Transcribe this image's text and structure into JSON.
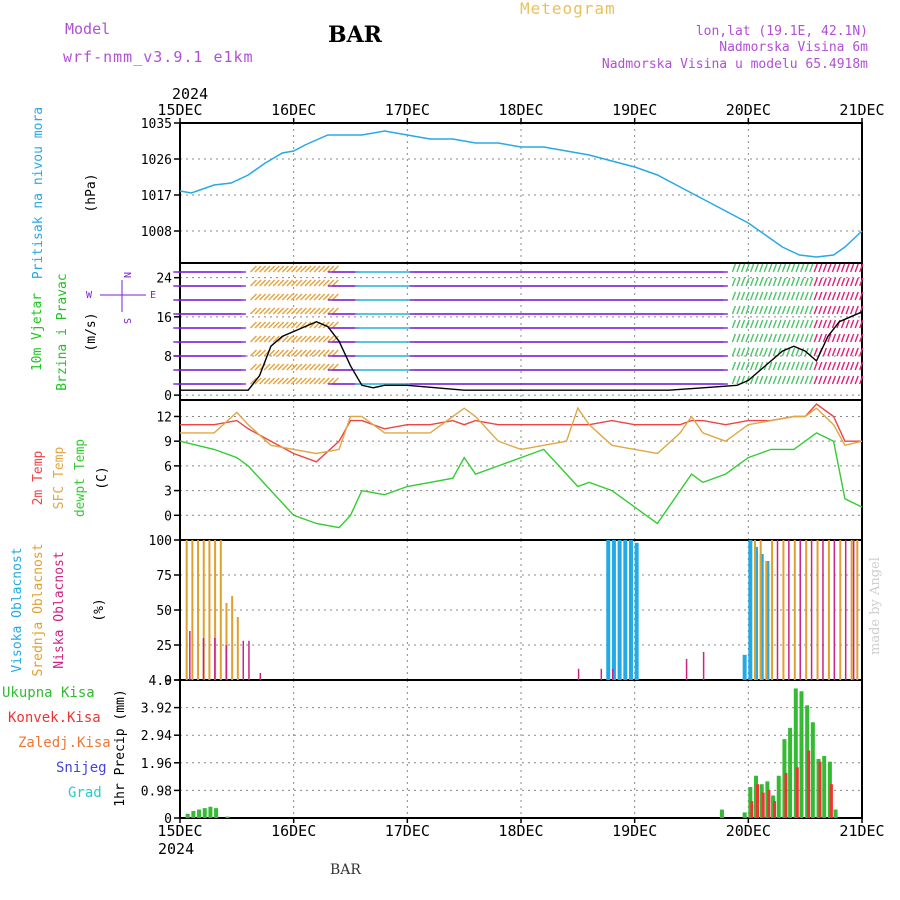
{
  "header": {
    "model_label": "Model",
    "model_name": "wrf-nmm_v3.9.1 e1km",
    "station": "BAR",
    "title": "Meteogram",
    "location": "lon,lat (19.1E, 42.1N)",
    "elevation": "Nadmorska Visina 6m",
    "model_elevation": "Nadmorska Visina u modelu 65.4918m"
  },
  "footer": {
    "station": "BAR",
    "credit": "made by Angel"
  },
  "time_axis": {
    "year": "2024",
    "ticks": [
      "15DEC",
      "16DEC",
      "17DEC",
      "18DEC",
      "19DEC",
      "20DEC",
      "21DEC"
    ]
  },
  "colors": {
    "pressure": "#29a8e6",
    "wind_label": "#22c422",
    "wind_arrows": "#7a22d6",
    "temp2m": "#ee4444",
    "sfc_temp": "#e0a845",
    "dewpoint": "#33cc33",
    "high_cloud": "#22aae8",
    "mid_cloud": "#e0a030",
    "low_cloud": "#cc2288",
    "total_precip": "#33bb33",
    "conv_precip": "#ee3333",
    "frozen_precip": "#ee7733",
    "snow": "#4444dd",
    "graupel": "#22cccc"
  },
  "panel_labels": {
    "pressure": [
      "Pritisak na nivou mora",
      "(hPa)"
    ],
    "wind": [
      "10m Vjetar",
      "Brzina i Pravac",
      "(m/s)"
    ],
    "wind_compass": [
      "N",
      "E",
      "S",
      "W"
    ],
    "temp": [
      "2m Temp",
      "SFC Temp",
      "dewpt Temp",
      "(C)"
    ],
    "cloud": [
      "Visoka Oblacnost",
      "Srednja Oblacnost",
      "Niska Oblacnost",
      "(%)"
    ],
    "precip": [
      "Ukupna Kisa",
      "Konvek.Kisa",
      "Zaledj.Kisa",
      "Snijeg",
      "Grad",
      "1hr Precip",
      "(mm)"
    ]
  },
  "chart_data": [
    {
      "type": "line",
      "name": "pressure",
      "x_unit": "days since 15DEC 00Z",
      "ylim": [
        1000,
        1035
      ],
      "yticks": [
        "1035",
        "1026",
        "1017",
        "1008"
      ],
      "x": [
        0,
        0.1,
        0.2,
        0.3,
        0.45,
        0.6,
        0.75,
        0.9,
        1.0,
        1.1,
        1.3,
        1.4,
        1.6,
        1.8,
        2.0,
        2.2,
        2.4,
        2.6,
        2.8,
        3.0,
        3.2,
        3.4,
        3.6,
        3.8,
        4.0,
        4.2,
        4.4,
        4.6,
        4.8,
        5.0,
        5.15,
        5.3,
        5.45,
        5.6,
        5.75,
        5.85,
        6.0
      ],
      "series": [
        {
          "values": [
            1018,
            1017.5,
            1018.5,
            1019.5,
            1020,
            1022,
            1025,
            1027.5,
            1028,
            1029.5,
            1032,
            1032,
            1032,
            1033,
            1032,
            1031,
            1031,
            1030,
            1030,
            1029,
            1029,
            1028,
            1027,
            1025.5,
            1024,
            1022,
            1019,
            1016,
            1013,
            1010,
            1007,
            1004,
            1002,
            1001.5,
            1002,
            1004,
            1008
          ]
        }
      ]
    },
    {
      "type": "line",
      "name": "wind",
      "x_unit": "days since 15DEC 00Z",
      "ylim": [
        -1,
        27
      ],
      "yticks": [
        "24",
        "16",
        "8",
        "0"
      ],
      "x": [
        0,
        0.3,
        0.6,
        0.7,
        0.8,
        0.9,
        1.0,
        1.1,
        1.2,
        1.3,
        1.4,
        1.5,
        1.6,
        1.7,
        1.8,
        2.0,
        2.5,
        3.0,
        3.5,
        4.0,
        4.3,
        4.6,
        4.9,
        5.0,
        5.1,
        5.2,
        5.3,
        5.4,
        5.5,
        5.6,
        5.7,
        5.8,
        5.9,
        6.0
      ],
      "series": [
        {
          "values": [
            1,
            1,
            1,
            4,
            10,
            12,
            13,
            14,
            15,
            14,
            11,
            6,
            2,
            1.5,
            2,
            2,
            1,
            1,
            1,
            1,
            1,
            1.5,
            2,
            3,
            5,
            7,
            9,
            10,
            9,
            7,
            12,
            15,
            16,
            17
          ]
        }
      ]
    },
    {
      "type": "line",
      "name": "temperature",
      "x_unit": "days since 15DEC 00Z",
      "ylim": [
        -3,
        14
      ],
      "yticks": [
        "12",
        "9",
        "6",
        "3",
        "0"
      ],
      "x": [
        0,
        0.3,
        0.5,
        0.6,
        0.8,
        1.0,
        1.2,
        1.4,
        1.5,
        1.6,
        1.8,
        2.0,
        2.2,
        2.4,
        2.5,
        2.6,
        2.8,
        3.0,
        3.2,
        3.4,
        3.5,
        3.6,
        3.8,
        4.0,
        4.2,
        4.4,
        4.5,
        4.6,
        4.8,
        5.0,
        5.2,
        5.4,
        5.5,
        5.6,
        5.75,
        5.85,
        6.0
      ],
      "series": [
        {
          "name": "2m Temp",
          "values": [
            11,
            11,
            11.5,
            10.5,
            9,
            7.5,
            6.5,
            9,
            11.5,
            11.5,
            10.5,
            11,
            11,
            11.5,
            11,
            11.5,
            11,
            11,
            11,
            11,
            11,
            11,
            11.5,
            11,
            11,
            11,
            11.5,
            11.5,
            11,
            11.5,
            11.5,
            12,
            12,
            13.5,
            12,
            9,
            9
          ]
        },
        {
          "name": "SFC Temp",
          "values": [
            10,
            10,
            12.5,
            11,
            8.5,
            8,
            7.5,
            8,
            12,
            12,
            10,
            10,
            10,
            12,
            13,
            12,
            9,
            8,
            8.5,
            9,
            13,
            11,
            8.5,
            8,
            7.5,
            10,
            12,
            10,
            9,
            11,
            11.5,
            12,
            12,
            13,
            11,
            8.5,
            9
          ]
        },
        {
          "name": "dewpt Temp",
          "values": [
            9,
            8,
            7,
            6,
            3,
            0,
            -1,
            -1.5,
            0,
            3,
            2.5,
            3.5,
            4,
            4.5,
            7,
            5,
            6,
            7,
            8,
            5,
            3.5,
            4,
            3,
            1,
            -1,
            3,
            5,
            4,
            5,
            7,
            8,
            8,
            9,
            10,
            9,
            2,
            1
          ]
        }
      ]
    },
    {
      "type": "bar",
      "name": "cloud cover",
      "x_unit": "days since 15DEC 00Z",
      "ylim": [
        0,
        100
      ],
      "yticks": [
        "100",
        "75",
        "50",
        "25",
        "0"
      ],
      "series": [
        {
          "name": "Visoka Oblacnost",
          "x": [
            3.75,
            3.8,
            3.85,
            3.9,
            3.95,
            4.0,
            4.95,
            5.0,
            5.05,
            5.1,
            5.15
          ],
          "values": [
            100,
            100,
            100,
            100,
            100,
            98,
            18,
            100,
            95,
            90,
            85
          ]
        },
        {
          "name": "Srednja Oblacnost",
          "x": [
            0.05,
            0.1,
            0.15,
            0.2,
            0.25,
            0.3,
            0.35,
            0.4,
            0.45,
            0.5,
            5.05,
            5.1,
            5.15,
            5.2,
            5.3,
            5.4,
            5.5,
            5.6,
            5.7,
            5.8,
            5.9,
            5.95
          ],
          "values": [
            100,
            100,
            100,
            100,
            100,
            100,
            100,
            55,
            60,
            45,
            100,
            100,
            85,
            100,
            100,
            100,
            100,
            100,
            100,
            100,
            100,
            100
          ]
        },
        {
          "name": "Niska Oblacnost",
          "x": [
            0.08,
            0.2,
            0.3,
            0.4,
            0.55,
            0.6,
            0.7,
            3.5,
            3.7,
            3.8,
            4.45,
            4.6,
            5.25,
            5.35,
            5.45,
            5.55,
            5.65,
            5.75,
            5.85,
            5.92
          ],
          "values": [
            35,
            30,
            30,
            25,
            28,
            28,
            5,
            8,
            8,
            8,
            15,
            20,
            100,
            100,
            100,
            100,
            100,
            100,
            100,
            100
          ]
        }
      ]
    },
    {
      "type": "bar",
      "name": "precipitation",
      "x_unit": "days since 15DEC 00Z",
      "ylim": [
        0,
        4.9
      ],
      "yticks": [
        "4.9",
        "3.92",
        "2.94",
        "1.96",
        "0.98",
        "0"
      ],
      "series": [
        {
          "name": "Ukupna Kisa",
          "x": [
            0.05,
            0.1,
            0.15,
            0.2,
            0.25,
            0.3,
            0.4,
            4.75,
            4.95,
            5.0,
            5.05,
            5.1,
            5.15,
            5.2,
            5.25,
            5.3,
            5.35,
            5.4,
            5.45,
            5.5,
            5.55,
            5.6,
            5.65,
            5.7,
            5.75
          ],
          "values": [
            0.15,
            0.25,
            0.3,
            0.35,
            0.4,
            0.35,
            0.05,
            0.3,
            0.2,
            1.1,
            1.5,
            1.2,
            1.3,
            0.8,
            1.5,
            2.8,
            3.2,
            4.6,
            4.5,
            4.0,
            3.4,
            2.1,
            2.2,
            2.0,
            0.3
          ]
        },
        {
          "name": "Konvek.Kisa",
          "x": [
            5.0,
            5.05,
            5.1,
            5.15,
            5.2,
            5.3,
            5.4,
            5.5,
            5.6,
            5.7
          ],
          "values": [
            0.6,
            1.2,
            0.9,
            1.0,
            0.6,
            1.6,
            1.8,
            2.4,
            2.0,
            1.2
          ]
        }
      ]
    }
  ]
}
